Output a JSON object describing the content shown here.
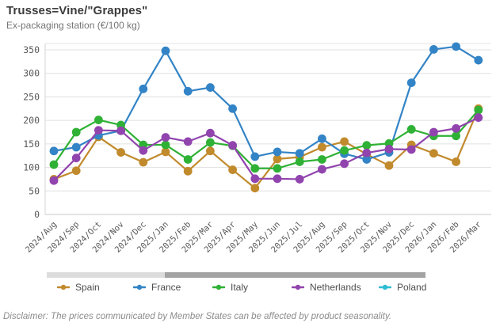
{
  "header": {
    "title": "Trusses=Vine/\"Grappes\"",
    "subtitle": "Ex-packaging station (€/100 kg)"
  },
  "chart_data": {
    "type": "line",
    "title": "Trusses=Vine/\"Grappes\"",
    "subtitle": "Ex-packaging station (€/100 kg)",
    "ylabel": "",
    "xlabel": "",
    "ylim": [
      0,
      350
    ],
    "yticks": [
      0,
      50,
      100,
      150,
      200,
      250,
      300,
      350
    ],
    "grid": true,
    "legend_position": "bottom",
    "categories": [
      "2024/Aug",
      "2024/Sep",
      "2024/Oct",
      "2024/Nov",
      "2024/Dec",
      "2025/Jan",
      "2025/Feb",
      "2025/Mar",
      "2025/Apr",
      "2025/May",
      "2025/Jun",
      "2025/Jul",
      "2025/Aug",
      "2025/Sep",
      "2025/Oct",
      "2025/Nov",
      "2025/Dec",
      "2026/Jan",
      "2026/Feb",
      "2026/Mar"
    ],
    "series": [
      {
        "name": "Spain",
        "color": "#C18A2C",
        "values": [
          75,
          93,
          165,
          132,
          111,
          133,
          92,
          135,
          95,
          56,
          118,
          122,
          143,
          155,
          128,
          104,
          148,
          130,
          112,
          225
        ]
      },
      {
        "name": "France",
        "color": "#3384C6",
        "values": [
          135,
          143,
          168,
          178,
          267,
          348,
          262,
          270,
          225,
          123,
          133,
          130,
          161,
          129,
          117,
          132,
          280,
          351,
          357,
          328
        ]
      },
      {
        "name": "Italy",
        "color": "#2FB135",
        "values": [
          106,
          175,
          201,
          190,
          148,
          148,
          117,
          153,
          146,
          98,
          98,
          112,
          117,
          136,
          147,
          151,
          181,
          167,
          167,
          222
        ]
      },
      {
        "name": "Netherlands",
        "color": "#9144AE",
        "values": [
          72,
          120,
          179,
          178,
          136,
          164,
          155,
          173,
          147,
          76,
          76,
          75,
          96,
          108,
          131,
          139,
          138,
          175,
          183,
          206
        ]
      },
      {
        "name": "Poland",
        "color": "#2FBCD4",
        "values": []
      }
    ]
  },
  "legend": {
    "items": [
      {
        "label": "Spain",
        "color": "#C18A2C"
      },
      {
        "label": "France",
        "color": "#3384C6"
      },
      {
        "label": "Italy",
        "color": "#2FB135"
      },
      {
        "label": "Netherlands",
        "color": "#9144AE"
      },
      {
        "label": "Poland",
        "color": "#2FBCD4"
      }
    ]
  },
  "disclaimer": "Disclaimer: The prices communicated by Member States can be affected by product seasonality."
}
